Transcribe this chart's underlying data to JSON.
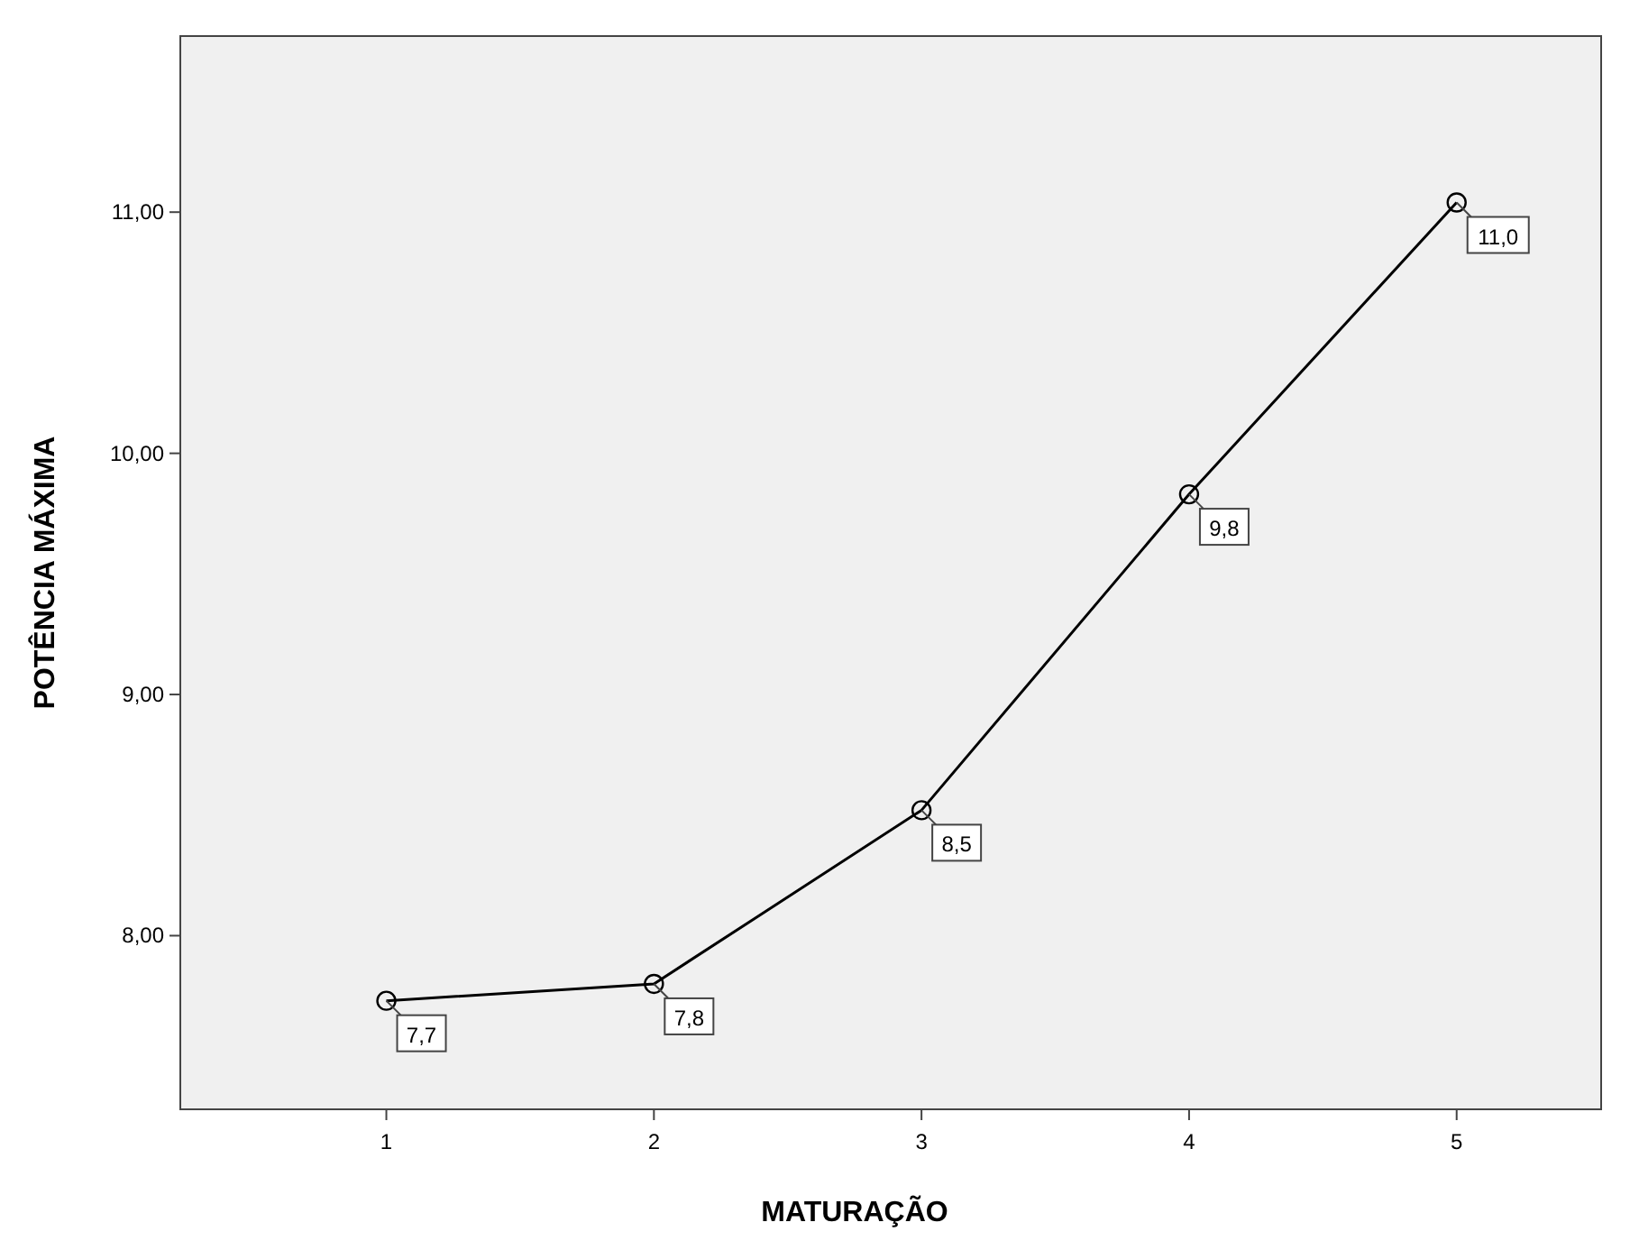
{
  "chart_data": {
    "type": "line",
    "xlabel": "MATURAÇÃO",
    "ylabel": "POTÊNCIA MÁXIMA",
    "x": [
      1,
      2,
      3,
      4,
      5
    ],
    "series": [
      {
        "color": "#000000",
        "values": [
          7.73,
          7.8,
          8.52,
          9.83,
          11.04
        ],
        "value_labels": [
          "7,7",
          "7,8",
          "8,5",
          "9,8",
          "11,0"
        ]
      }
    ],
    "xlim": [
      0.23,
      5.54
    ],
    "xticks": [
      1,
      2,
      3,
      4,
      5
    ],
    "ylim": [
      7.28,
      11.73
    ],
    "yticks": [
      {
        "value": 8,
        "label": "8,00"
      },
      {
        "value": 9,
        "label": "9,00"
      },
      {
        "value": 10,
        "label": "10,00"
      },
      {
        "value": 11,
        "label": "11,00"
      }
    ],
    "marker": "circle",
    "grid": false
  }
}
